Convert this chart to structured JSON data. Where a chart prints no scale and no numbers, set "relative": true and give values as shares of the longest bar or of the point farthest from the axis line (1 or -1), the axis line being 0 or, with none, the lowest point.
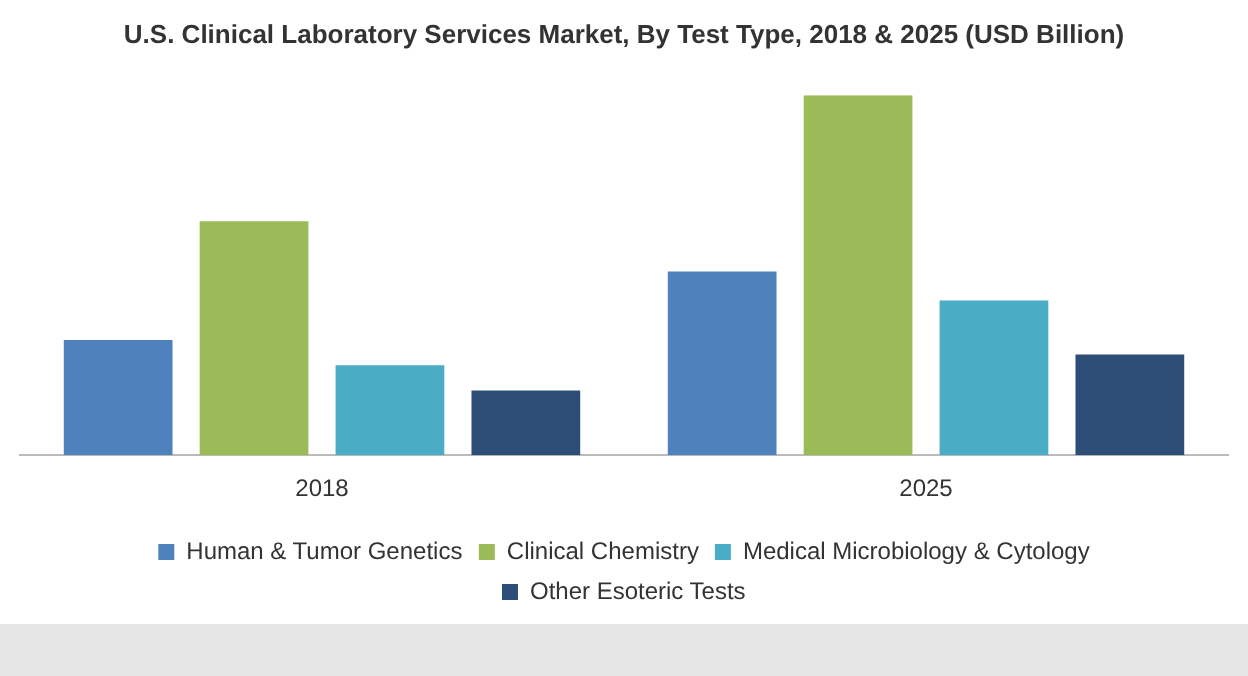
{
  "chart_data": {
    "type": "bar",
    "title": "U.S. Clinical Laboratory Services Market, By Test Type, 2018 & 2025 (USD Billion)",
    "categories": [
      "2018",
      "2025"
    ],
    "relative": true,
    "grid": false,
    "legend": "bottom",
    "series": [
      {
        "name": "Human & Tumor Genetics",
        "color": "#4f81bd",
        "values": [
          0.32,
          0.51
        ]
      },
      {
        "name": "Clinical Chemistry",
        "color": "#9bbb59",
        "values": [
          0.65,
          1
        ]
      },
      {
        "name": "Medical Microbiology & Cytology",
        "color": "#4bacc6",
        "values": [
          0.25,
          0.43
        ]
      },
      {
        "name": "Other Esoteric Tests",
        "color": "#2c4d75",
        "values": [
          0.18,
          0.28
        ]
      }
    ]
  }
}
